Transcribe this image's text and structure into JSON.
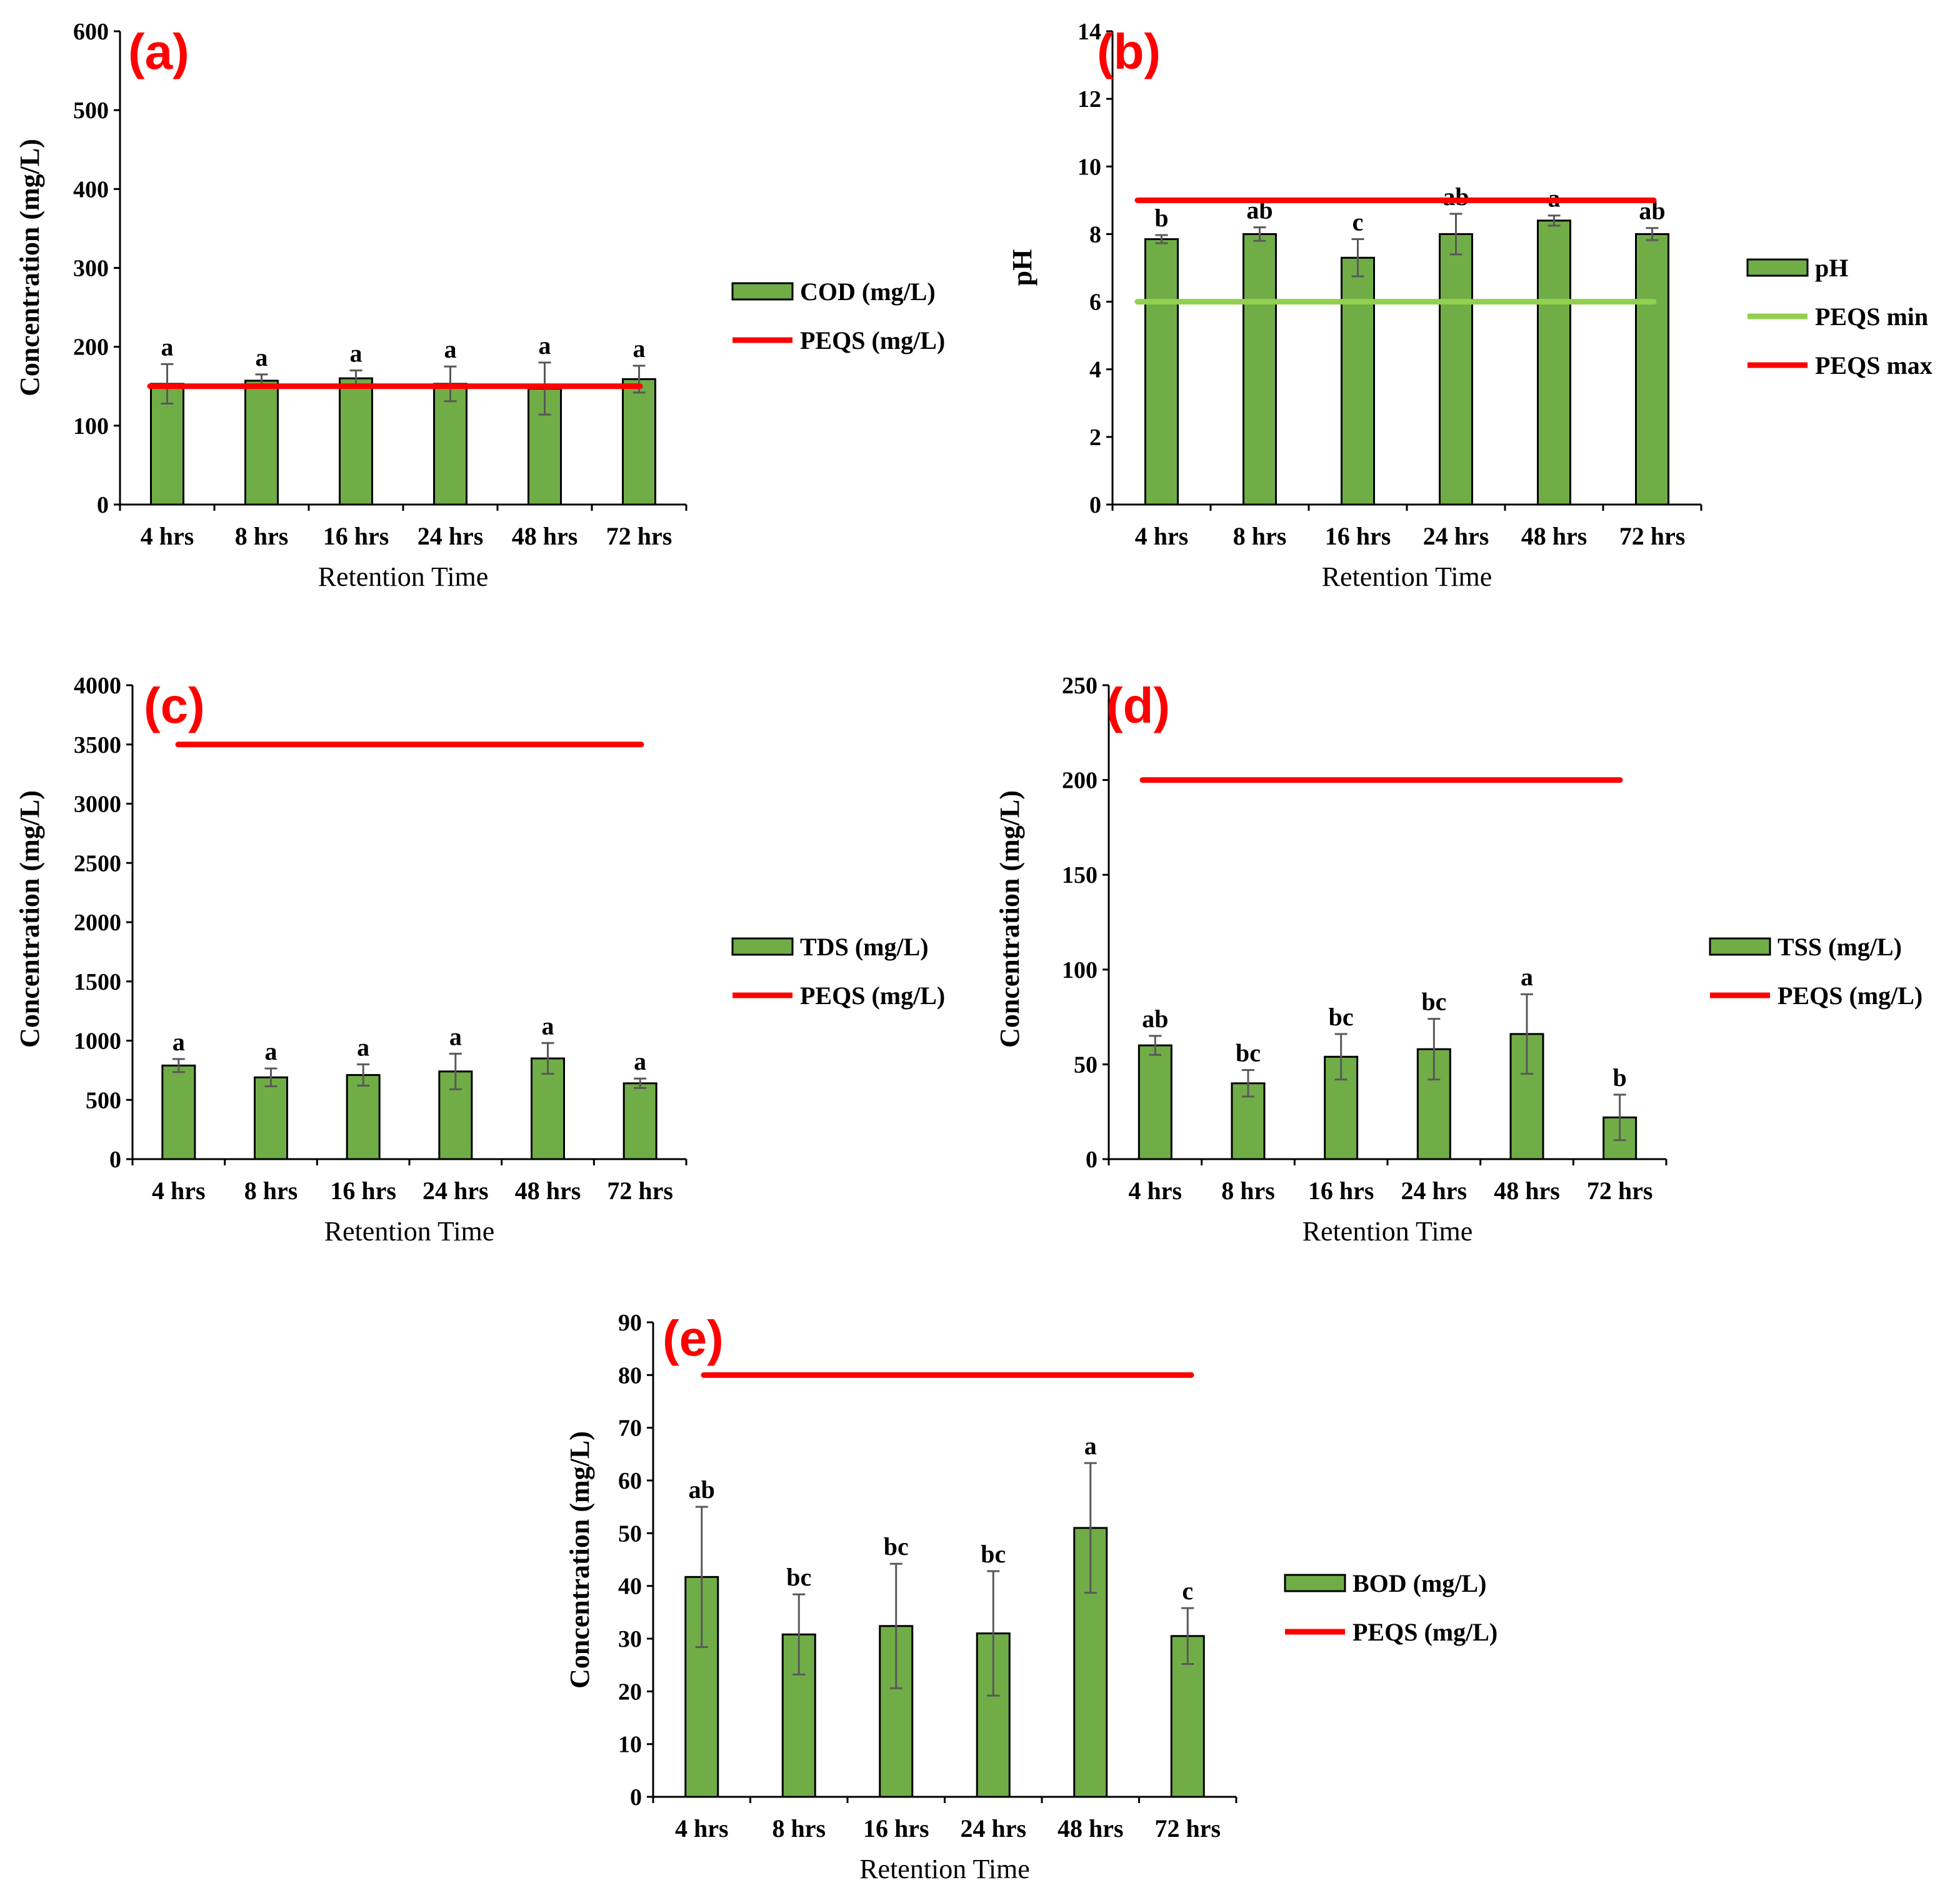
{
  "chart_data": [
    {
      "panel": "(a)",
      "type": "bar",
      "categories": [
        "4 hrs",
        "8 hrs",
        "16 hrs",
        "24 hrs",
        "48 hrs",
        "72 hrs"
      ],
      "series": [
        {
          "name": "COD (mg/L)",
          "values": [
            153,
            157,
            160,
            153,
            147,
            159
          ],
          "errors": [
            25,
            8,
            10,
            22,
            33,
            17
          ]
        }
      ],
      "significance": [
        "a",
        "a",
        "a",
        "a",
        "a",
        "a"
      ],
      "reference_lines": [
        {
          "name": "PEQS (mg/L)",
          "value": 150,
          "color": "#ff0000"
        }
      ],
      "ylim": [
        0,
        600
      ],
      "yticks": [
        0,
        100,
        200,
        300,
        400,
        500,
        600
      ],
      "xlabel": "Retention Time",
      "ylabel": "Concentration (mg/L)"
    },
    {
      "panel": "(b)",
      "type": "bar",
      "categories": [
        "4 hrs",
        "8 hrs",
        "16 hrs",
        "24 hrs",
        "48 hrs",
        "72 hrs"
      ],
      "series": [
        {
          "name": "pH",
          "values": [
            7.85,
            8.0,
            7.3,
            8.0,
            8.4,
            8.0
          ],
          "errors": [
            0.12,
            0.2,
            0.55,
            0.6,
            0.15,
            0.18
          ]
        }
      ],
      "significance": [
        "b",
        "ab",
        "c",
        "ab",
        "a",
        "ab"
      ],
      "reference_lines": [
        {
          "name": "PEQS min",
          "value": 6,
          "color": "#92d050"
        },
        {
          "name": "PEQS max",
          "value": 9,
          "color": "#ff0000"
        }
      ],
      "ylim": [
        0,
        14
      ],
      "yticks": [
        0,
        2,
        4,
        6,
        8,
        10,
        12,
        14
      ],
      "xlabel": "Retention Time",
      "ylabel": "pH"
    },
    {
      "panel": "(c)",
      "type": "bar",
      "categories": [
        "4 hrs",
        "8 hrs",
        "16 hrs",
        "24 hrs",
        "48 hrs",
        "72 hrs"
      ],
      "series": [
        {
          "name": "TDS (mg/L)",
          "values": [
            790,
            690,
            710,
            740,
            850,
            640
          ],
          "errors": [
            55,
            75,
            90,
            150,
            130,
            40
          ]
        }
      ],
      "significance": [
        "a",
        "a",
        "a",
        "a",
        "a",
        "a"
      ],
      "reference_lines": [
        {
          "name": "PEQS (mg/L)",
          "value": 3500,
          "color": "#ff0000"
        }
      ],
      "ylim": [
        0,
        4000
      ],
      "yticks": [
        0,
        500,
        1000,
        1500,
        2000,
        2500,
        3000,
        3500,
        4000
      ],
      "xlabel": "Retention Time",
      "ylabel": "Concentration (mg/L)"
    },
    {
      "panel": "(d)",
      "type": "bar",
      "categories": [
        "4 hrs",
        "8 hrs",
        "16 hrs",
        "24 hrs",
        "48 hrs",
        "72 hrs"
      ],
      "series": [
        {
          "name": "TSS (mg/L)",
          "values": [
            60,
            40,
            54,
            58,
            66,
            22
          ],
          "errors": [
            5,
            7,
            12,
            16,
            21,
            12
          ]
        }
      ],
      "significance": [
        "ab",
        "bc",
        "bc",
        "bc",
        "a",
        "b"
      ],
      "reference_lines": [
        {
          "name": "PEQS (mg/L)",
          "value": 200,
          "color": "#ff0000"
        }
      ],
      "ylim": [
        0,
        250
      ],
      "yticks": [
        0,
        50,
        100,
        150,
        200,
        250
      ],
      "xlabel": "Retention Time",
      "ylabel": "Concentration (mg/L)"
    },
    {
      "panel": "(e)",
      "type": "bar",
      "categories": [
        "4 hrs",
        "8 hrs",
        "16 hrs",
        "24 hrs",
        "48 hrs",
        "72 hrs"
      ],
      "series": [
        {
          "name": "BOD (mg/L)",
          "values": [
            41.7,
            30.8,
            32.4,
            31.0,
            51.0,
            30.5
          ],
          "errors": [
            13.3,
            7.6,
            11.8,
            11.8,
            12.3,
            5.3
          ]
        }
      ],
      "significance": [
        "ab",
        "bc",
        "bc",
        "bc",
        "a",
        "c"
      ],
      "reference_lines": [
        {
          "name": "PEQS (mg/L)",
          "value": 80,
          "color": "#ff0000"
        }
      ],
      "ylim": [
        0,
        90
      ],
      "yticks": [
        0,
        10,
        20,
        30,
        40,
        50,
        60,
        70,
        80,
        90
      ],
      "xlabel": "Retention Time",
      "ylabel": "Concentration (mg/L)"
    }
  ]
}
